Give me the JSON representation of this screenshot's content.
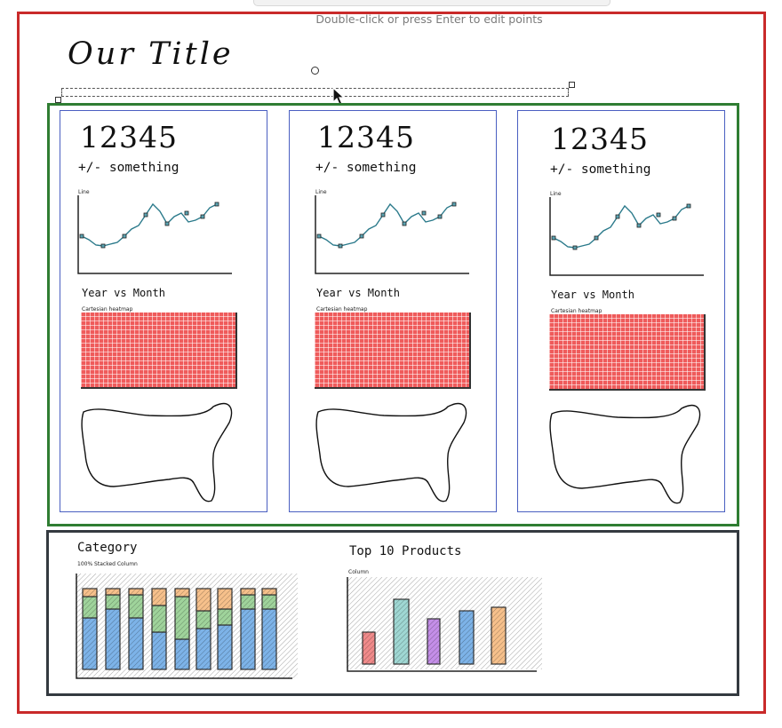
{
  "hint": "Double-click or press Enter to edit points",
  "title": "Our Title",
  "cards": [
    {
      "kpi": "12345",
      "delta": "+/- something",
      "line_label": "Line",
      "heat_title": "Year vs Month",
      "heat_label": "Cartesian heatmap"
    },
    {
      "kpi": "12345",
      "delta": "+/- something",
      "line_label": "Line",
      "heat_title": "Year vs Month",
      "heat_label": "Cartesian heatmap"
    },
    {
      "kpi": "12345",
      "delta": "+/- something",
      "line_label": "Line",
      "heat_title": "Year vs Month",
      "heat_label": "Cartesian heatmap"
    }
  ],
  "bottom": {
    "category_title": "Category",
    "category_label": "100% Stacked Column",
    "top_title": "Top 10 Products",
    "top_label": "Column"
  },
  "colors": {
    "outer": "#c92a2a",
    "green": "#2f7d32",
    "card": "#4a5fc1",
    "dark": "#343a40",
    "heat": "#ef5b5b",
    "line": "#2b7a8b"
  }
}
